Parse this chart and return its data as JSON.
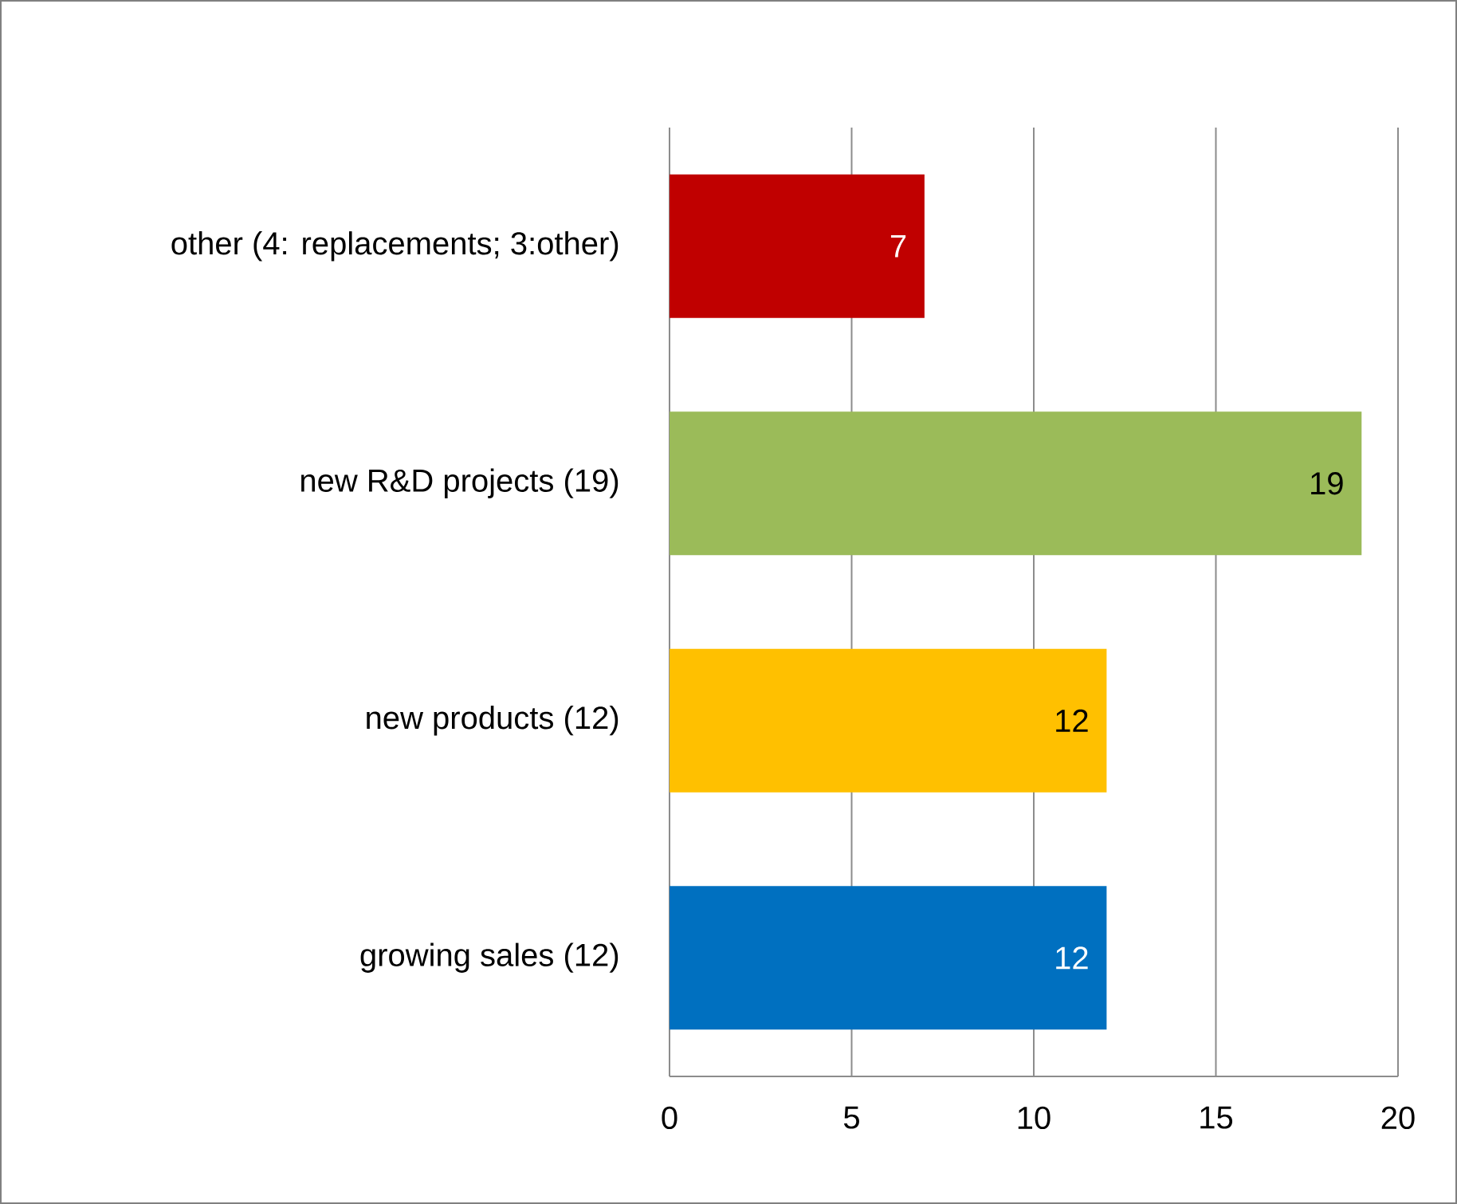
{
  "chart_data": {
    "type": "bar",
    "orientation": "horizontal",
    "categories": [
      "other (4: replacements; 3:other)",
      "new R&D projects (19)",
      "new products (12)",
      "growing sales (12)"
    ],
    "values": [
      7,
      19,
      12,
      12
    ],
    "colors": [
      "#c00000",
      "#9bbb59",
      "#ffc000",
      "#0070c0"
    ],
    "xlim": [
      0,
      20
    ],
    "xticks": [
      0,
      5,
      10,
      15,
      20
    ],
    "grid": "x",
    "data_labels": true
  }
}
